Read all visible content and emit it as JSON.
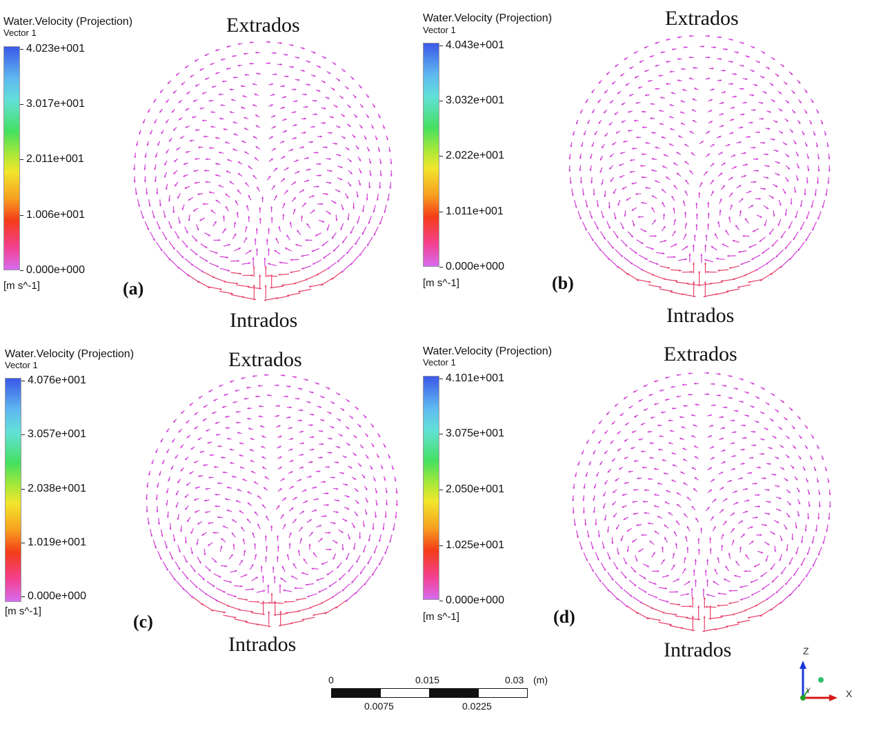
{
  "legend_title": "Water.Velocity (Projection)",
  "legend_subtitle": "Vector 1",
  "units": "[m s^-1]",
  "label_top": "Extrados",
  "label_bottom": "Intrados",
  "panels": [
    {
      "tag": "(a)",
      "ticks": [
        "4.023e+001",
        "3.017e+001",
        "2.011e+001",
        "1.006e+001",
        "0.000e+000"
      ]
    },
    {
      "tag": "(b)",
      "ticks": [
        "4.043e+001",
        "3.032e+001",
        "2.022e+001",
        "1.011e+001",
        "0.000e+000"
      ]
    },
    {
      "tag": "(c)",
      "ticks": [
        "4.076e+001",
        "3.057e+001",
        "2.038e+001",
        "1.019e+001",
        "0.000e+000"
      ]
    },
    {
      "tag": "(d)",
      "ticks": [
        "4.101e+001",
        "3.075e+001",
        "2.050e+001",
        "1.025e+001",
        "0.000e+000"
      ]
    }
  ],
  "scale_bar": {
    "top_labels": [
      "0",
      "0.015",
      "0.03"
    ],
    "unit": "(m)",
    "bottom_labels": [
      "0.0075",
      "0.0225"
    ]
  },
  "axes": {
    "z": "Z",
    "y": "Y",
    "x": "X"
  },
  "colors": {
    "vector": "#d23ad6",
    "vector_fast": "#e8406a"
  }
}
